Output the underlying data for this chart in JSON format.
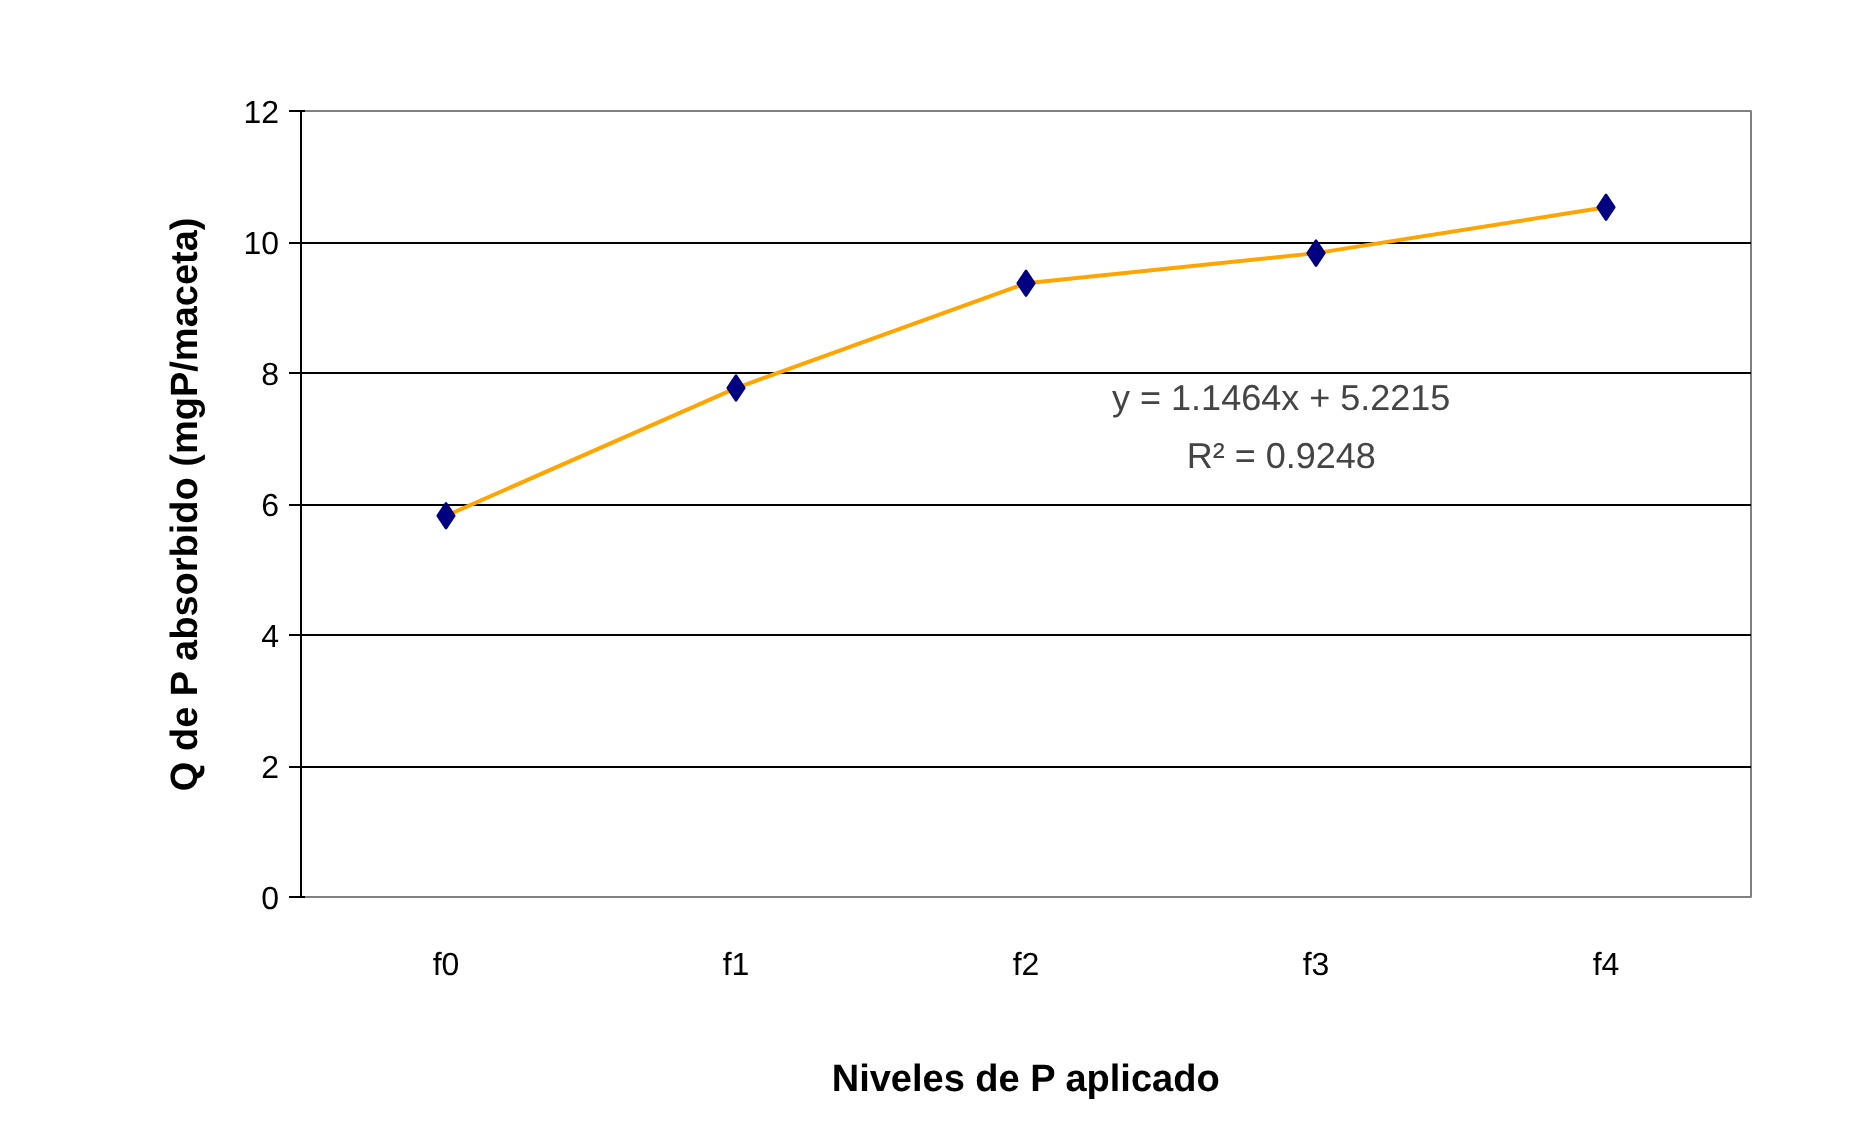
{
  "chart_data": {
    "type": "line",
    "xlabel": "Niveles de P aplicado",
    "ylabel": "Q de P absorbido (mgP/maceta)",
    "categories": [
      "f0",
      "f1",
      "f2",
      "f3",
      "f4"
    ],
    "series": [
      {
        "color": "#ffa500",
        "values": [
          5.82,
          7.77,
          9.37,
          9.83,
          10.53
        ]
      }
    ],
    "marker": "diamond",
    "line_style": "solid",
    "ylim": [
      0,
      12
    ],
    "yticks": [
      0,
      2,
      4,
      6,
      8,
      10,
      12
    ],
    "grid": "y",
    "annotations": [
      "y = 1.1464x + 5.2215",
      "R² = 0.9248"
    ]
  }
}
